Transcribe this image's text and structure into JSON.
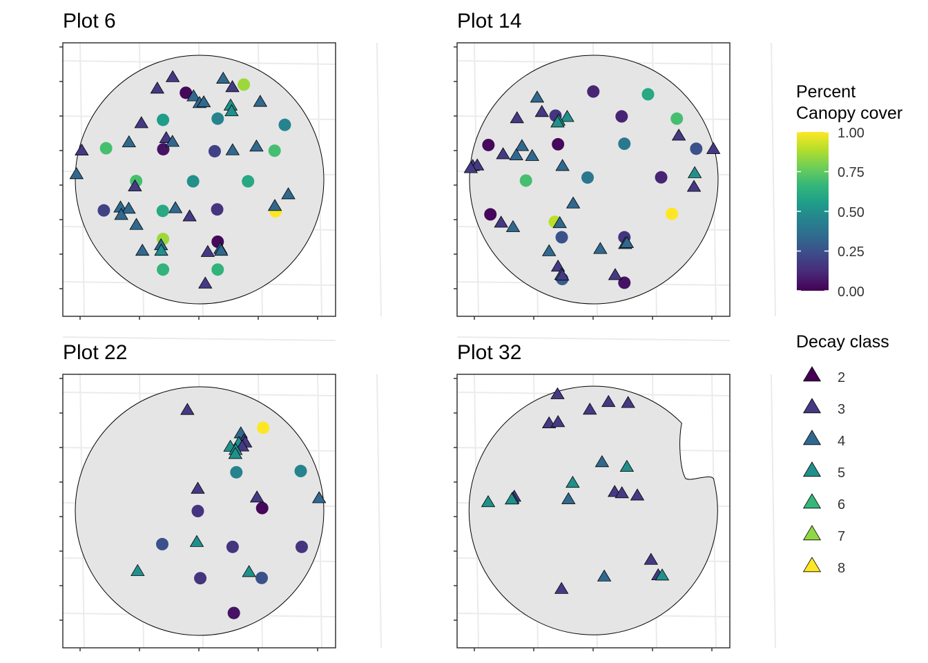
{
  "colors": {
    "background": "#ffffff",
    "panel_border": "#333333",
    "grid": "#ebebeb",
    "plot_fill": "#e5e5e5",
    "plot_outline": "#000000",
    "viridis": [
      "#440154",
      "#482878",
      "#3e4989",
      "#31688e",
      "#26828e",
      "#1f9e89",
      "#35b779",
      "#6ece58",
      "#b5de2b",
      "#fde725"
    ],
    "decay": {
      "2": "#440154",
      "3": "#443a83",
      "4": "#31688e",
      "5": "#21908c",
      "6": "#35b779",
      "7": "#8fd744",
      "8": "#fde725"
    }
  },
  "chart_data": [
    {
      "type": "scatter",
      "title": "Plot 6",
      "xlim": [
        0,
        100
      ],
      "ylim": [
        0,
        100
      ],
      "boundary": "circle",
      "canopy_points": [
        {
          "x": 44.5,
          "y": 84.9,
          "v": 0.02
        },
        {
          "x": 35.3,
          "y": 74.0,
          "v": 0.55
        },
        {
          "x": 57.3,
          "y": 74.5,
          "v": 0.45
        },
        {
          "x": 84.3,
          "y": 72.0,
          "v": 0.45
        },
        {
          "x": 67.8,
          "y": 88.2,
          "v": 0.85
        },
        {
          "x": 12.4,
          "y": 62.6,
          "v": 0.7
        },
        {
          "x": 35.4,
          "y": 62.2,
          "v": 0.05
        },
        {
          "x": 56.1,
          "y": 61.4,
          "v": 0.2
        },
        {
          "x": 80.2,
          "y": 61.6,
          "v": 0.7
        },
        {
          "x": 24.5,
          "y": 49.4,
          "v": 0.7
        },
        {
          "x": 47.4,
          "y": 49.3,
          "v": 0.5
        },
        {
          "x": 69.5,
          "y": 49.3,
          "v": 0.6
        },
        {
          "x": 11.5,
          "y": 37.6,
          "v": 0.2
        },
        {
          "x": 35.2,
          "y": 37.4,
          "v": 0.6
        },
        {
          "x": 57.1,
          "y": 38.0,
          "v": 0.15
        },
        {
          "x": 80.6,
          "y": 37.2,
          "v": 1.0
        },
        {
          "x": 35.3,
          "y": 26.1,
          "v": 0.85
        },
        {
          "x": 57.3,
          "y": 25.0,
          "v": 0.02
        },
        {
          "x": 35.3,
          "y": 13.8,
          "v": 0.65
        },
        {
          "x": 57.3,
          "y": 13.8,
          "v": 0.65
        }
      ],
      "decay_points": [
        {
          "x": 39.2,
          "y": 91.0,
          "v": "3"
        },
        {
          "x": 33.0,
          "y": 86.4,
          "v": "3"
        },
        {
          "x": 59.5,
          "y": 90.4,
          "v": "4"
        },
        {
          "x": 63.2,
          "y": 87.0,
          "v": "3"
        },
        {
          "x": 47.6,
          "y": 83.3,
          "v": "4"
        },
        {
          "x": 50.0,
          "y": 80.6,
          "v": "4"
        },
        {
          "x": 51.7,
          "y": 80.9,
          "v": "4"
        },
        {
          "x": 62.5,
          "y": 79.6,
          "v": "5"
        },
        {
          "x": 62.9,
          "y": 77.3,
          "v": "5"
        },
        {
          "x": 74.4,
          "y": 81.1,
          "v": "4"
        },
        {
          "x": 26.6,
          "y": 72.5,
          "v": "3"
        },
        {
          "x": 36.6,
          "y": 66.5,
          "v": "3"
        },
        {
          "x": 39.1,
          "y": 65.0,
          "v": "4"
        },
        {
          "x": 21.6,
          "y": 64.8,
          "v": "4"
        },
        {
          "x": 2.6,
          "y": 61.5,
          "v": "3"
        },
        {
          "x": 63.3,
          "y": 61.6,
          "v": "4"
        },
        {
          "x": 72.9,
          "y": 63.1,
          "v": "4"
        },
        {
          "x": 0.5,
          "y": 52.0,
          "v": "4"
        },
        {
          "x": 24.0,
          "y": 47.1,
          "v": "3"
        },
        {
          "x": 85.7,
          "y": 43.9,
          "v": "4"
        },
        {
          "x": 80.3,
          "y": 39.2,
          "v": "4"
        },
        {
          "x": 18.2,
          "y": 38.6,
          "v": "4"
        },
        {
          "x": 21.5,
          "y": 38.1,
          "v": "4"
        },
        {
          "x": 40.3,
          "y": 38.3,
          "v": "4"
        },
        {
          "x": 18.5,
          "y": 35.6,
          "v": "4"
        },
        {
          "x": 46.0,
          "y": 35.0,
          "v": "3"
        },
        {
          "x": 24.6,
          "y": 31.6,
          "v": "4"
        },
        {
          "x": 34.5,
          "y": 23.4,
          "v": "4"
        },
        {
          "x": 34.6,
          "y": 21.2,
          "v": "5"
        },
        {
          "x": 27.0,
          "y": 21.2,
          "v": "4"
        },
        {
          "x": 58.4,
          "y": 22.0,
          "v": "4"
        },
        {
          "x": 58.7,
          "y": 21.2,
          "v": "4"
        },
        {
          "x": 53.3,
          "y": 20.7,
          "v": "3"
        },
        {
          "x": 52.3,
          "y": 8.0,
          "v": "3"
        }
      ]
    },
    {
      "type": "scatter",
      "title": "Plot 14",
      "xlim": [
        0,
        100
      ],
      "ylim": [
        0,
        100
      ],
      "boundary": "circle",
      "canopy_points": [
        {
          "x": 49.8,
          "y": 85.4,
          "v": 0.1
        },
        {
          "x": 71.8,
          "y": 84.3,
          "v": 0.6
        },
        {
          "x": 34.6,
          "y": 75.7,
          "v": 0.15
        },
        {
          "x": 61.2,
          "y": 75.4,
          "v": 0.1
        },
        {
          "x": 83.4,
          "y": 74.5,
          "v": 0.7
        },
        {
          "x": 7.6,
          "y": 63.9,
          "v": 0.02
        },
        {
          "x": 35.6,
          "y": 64.2,
          "v": 0.02
        },
        {
          "x": 62.3,
          "y": 64.4,
          "v": 0.4
        },
        {
          "x": 91.2,
          "y": 62.4,
          "v": 0.25
        },
        {
          "x": 22.7,
          "y": 49.6,
          "v": 0.7
        },
        {
          "x": 47.5,
          "y": 50.8,
          "v": 0.4
        },
        {
          "x": 77.1,
          "y": 50.9,
          "v": 0.1
        },
        {
          "x": 8.4,
          "y": 36.0,
          "v": 0.02
        },
        {
          "x": 34.3,
          "y": 33.0,
          "v": 0.9
        },
        {
          "x": 81.4,
          "y": 36.2,
          "v": 1.0
        },
        {
          "x": 37.1,
          "y": 26.8,
          "v": 0.25
        },
        {
          "x": 62.3,
          "y": 26.8,
          "v": 0.15
        },
        {
          "x": 37.3,
          "y": 10.0,
          "v": 0.3
        },
        {
          "x": 62.3,
          "y": 8.5,
          "v": 0.05
        }
      ],
      "decay_points": [
        {
          "x": 27.2,
          "y": 82.8,
          "v": "4"
        },
        {
          "x": 29.1,
          "y": 77.0,
          "v": "3"
        },
        {
          "x": 39.3,
          "y": 75.0,
          "v": "5"
        },
        {
          "x": 19.1,
          "y": 74.5,
          "v": "3"
        },
        {
          "x": 35.8,
          "y": 73.5,
          "v": "5"
        },
        {
          "x": 35.4,
          "y": 72.8,
          "v": "5"
        },
        {
          "x": 84.2,
          "y": 67.5,
          "v": "3"
        },
        {
          "x": 98.1,
          "y": 62.1,
          "v": "3"
        },
        {
          "x": 21.1,
          "y": 63.3,
          "v": "4"
        },
        {
          "x": 13.5,
          "y": 60.0,
          "v": "3"
        },
        {
          "x": 18.8,
          "y": 59.6,
          "v": "4"
        },
        {
          "x": 25.2,
          "y": 59.3,
          "v": "4"
        },
        {
          "x": 1.3,
          "y": 55.3,
          "v": "3"
        },
        {
          "x": 3.1,
          "y": 55.5,
          "v": "3"
        },
        {
          "x": 37.4,
          "y": 55.3,
          "v": "4"
        },
        {
          "x": 0.5,
          "y": 54.4,
          "v": "3"
        },
        {
          "x": 90.6,
          "y": 52.4,
          "v": "5"
        },
        {
          "x": 90.3,
          "y": 46.9,
          "v": "3"
        },
        {
          "x": 41.7,
          "y": 40.2,
          "v": "4"
        },
        {
          "x": 12.7,
          "y": 32.5,
          "v": "3"
        },
        {
          "x": 17.5,
          "y": 30.7,
          "v": "4"
        },
        {
          "x": 36.3,
          "y": 32.3,
          "v": "4"
        },
        {
          "x": 52.6,
          "y": 21.9,
          "v": "4"
        },
        {
          "x": 62.6,
          "y": 23.9,
          "v": "4"
        },
        {
          "x": 63.3,
          "y": 24.3,
          "v": "4"
        },
        {
          "x": 32.0,
          "y": 21.0,
          "v": "4"
        },
        {
          "x": 35.6,
          "y": 14.8,
          "v": "3"
        },
        {
          "x": 58.6,
          "y": 11.4,
          "v": "3"
        },
        {
          "x": 36.9,
          "y": 11.5,
          "v": "4"
        },
        {
          "x": 37.3,
          "y": 11.2,
          "v": "3"
        }
      ]
    },
    {
      "type": "scatter",
      "title": "Plot 22",
      "xlim": [
        0,
        100
      ],
      "ylim": [
        0,
        100
      ],
      "boundary": "circle",
      "canopy_points": [
        {
          "x": 75.6,
          "y": 83.5,
          "v": 1.0
        },
        {
          "x": 64.8,
          "y": 65.6,
          "v": 0.45
        },
        {
          "x": 90.7,
          "y": 66.1,
          "v": 0.45
        },
        {
          "x": 49.3,
          "y": 50.0,
          "v": 0.15
        },
        {
          "x": 75.2,
          "y": 51.2,
          "v": 0.02
        },
        {
          "x": 35.0,
          "y": 36.7,
          "v": 0.25
        },
        {
          "x": 63.3,
          "y": 35.6,
          "v": 0.15
        },
        {
          "x": 91.1,
          "y": 35.6,
          "v": 0.15
        },
        {
          "x": 50.3,
          "y": 23.0,
          "v": 0.15
        },
        {
          "x": 75.0,
          "y": 23.1,
          "v": 0.25
        },
        {
          "x": 63.8,
          "y": 9.0,
          "v": 0.05
        }
      ],
      "decay_points": [
        {
          "x": 45.1,
          "y": 90.5,
          "v": "3"
        },
        {
          "x": 66.6,
          "y": 81.1,
          "v": "4"
        },
        {
          "x": 67.8,
          "y": 78.2,
          "v": "3"
        },
        {
          "x": 68.4,
          "y": 77.4,
          "v": "3"
        },
        {
          "x": 65.8,
          "y": 77.2,
          "v": "5"
        },
        {
          "x": 62.4,
          "y": 75.7,
          "v": "5"
        },
        {
          "x": 67.2,
          "y": 75.8,
          "v": "3"
        },
        {
          "x": 64.5,
          "y": 74.4,
          "v": "5"
        },
        {
          "x": 64.4,
          "y": 72.8,
          "v": "5"
        },
        {
          "x": 49.3,
          "y": 58.8,
          "v": "3"
        },
        {
          "x": 73.1,
          "y": 55.3,
          "v": "3"
        },
        {
          "x": 98.1,
          "y": 55.0,
          "v": "4"
        },
        {
          "x": 48.9,
          "y": 37.4,
          "v": "5"
        },
        {
          "x": 25.1,
          "y": 25.7,
          "v": "5"
        },
        {
          "x": 69.9,
          "y": 25.3,
          "v": "5"
        }
      ]
    },
    {
      "type": "scatter",
      "title": "Plot 32",
      "xlim": [
        0,
        100
      ],
      "ylim": [
        0,
        100
      ],
      "boundary": "circle-with-notch",
      "canopy_points": [],
      "decay_points": [
        {
          "x": 35.4,
          "y": 96.8,
          "v": "3"
        },
        {
          "x": 55.9,
          "y": 93.7,
          "v": "3"
        },
        {
          "x": 63.8,
          "y": 93.3,
          "v": "3"
        },
        {
          "x": 48.4,
          "y": 90.6,
          "v": "3"
        },
        {
          "x": 32.0,
          "y": 85.1,
          "v": "3"
        },
        {
          "x": 35.6,
          "y": 85.6,
          "v": "3"
        },
        {
          "x": 53.3,
          "y": 69.5,
          "v": "4"
        },
        {
          "x": 63.3,
          "y": 67.6,
          "v": "5"
        },
        {
          "x": 41.5,
          "y": 61.2,
          "v": "5"
        },
        {
          "x": 58.4,
          "y": 57.5,
          "v": "3"
        },
        {
          "x": 61.3,
          "y": 57.0,
          "v": "3"
        },
        {
          "x": 67.5,
          "y": 56.1,
          "v": "3"
        },
        {
          "x": 18.0,
          "y": 55.6,
          "v": "3"
        },
        {
          "x": 17.3,
          "y": 54.8,
          "v": "4"
        },
        {
          "x": 17.0,
          "y": 54.5,
          "v": "5"
        },
        {
          "x": 39.8,
          "y": 54.6,
          "v": "4"
        },
        {
          "x": 7.5,
          "y": 53.4,
          "v": "5"
        },
        {
          "x": 73.0,
          "y": 30.2,
          "v": "3"
        },
        {
          "x": 75.9,
          "y": 24.0,
          "v": "3"
        },
        {
          "x": 77.5,
          "y": 23.9,
          "v": "5"
        },
        {
          "x": 54.2,
          "y": 23.5,
          "v": "4"
        },
        {
          "x": 37.0,
          "y": 18.5,
          "v": "3"
        }
      ]
    }
  ],
  "legend": {
    "canopy_title_line1": "Percent",
    "canopy_title_line2": "Canopy cover",
    "canopy_ticks": [
      "1.00",
      "0.75",
      "0.50",
      "0.25",
      "0.00"
    ],
    "decay_title": "Decay class",
    "decay_labels": [
      "2",
      "3",
      "4",
      "5",
      "6",
      "7",
      "8"
    ]
  }
}
